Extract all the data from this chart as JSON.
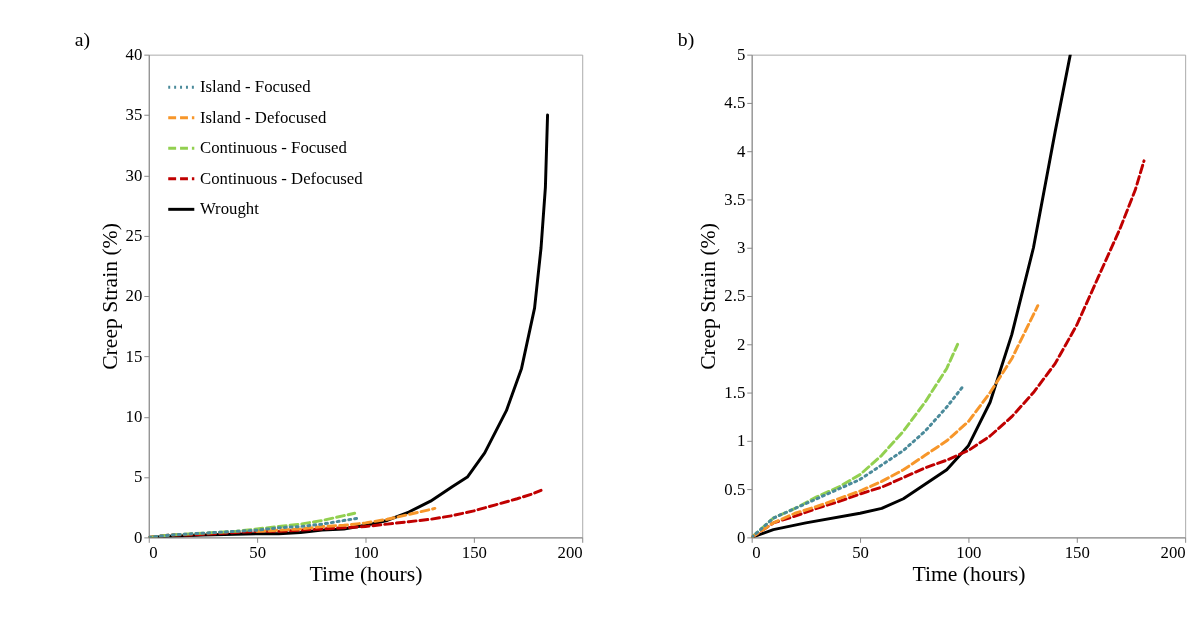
{
  "chart_data": [
    {
      "type": "line",
      "xlabel": "Time (hours)",
      "ylabel": "Creep Strain (%)",
      "annotations": [
        "a)"
      ],
      "xlim": [
        0,
        200
      ],
      "xticks": [
        0,
        50,
        100,
        150,
        200
      ],
      "ylim": [
        0,
        40
      ],
      "yticks": [
        0,
        5,
        10,
        15,
        20,
        25,
        30,
        35,
        40
      ],
      "grid": false,
      "legend": "top left",
      "marker": "none",
      "series": [
        {
          "name": "Island - Focused",
          "color": "#4a8a9a",
          "line_style": "dotted",
          "x": [
            0,
            10,
            20,
            30,
            40,
            50,
            60,
            70,
            80,
            90,
            97
          ],
          "values": [
            0,
            0.2,
            0.3,
            0.4,
            0.5,
            0.6,
            0.8,
            0.9,
            1.1,
            1.4,
            1.6
          ]
        },
        {
          "name": "Island - Defocused",
          "color": "#f7962a",
          "line_style": "dashed",
          "x": [
            50,
            60,
            70,
            80,
            90,
            100,
            110,
            120,
            132
          ],
          "values": [
            0.5,
            0.6,
            0.7,
            0.9,
            1.0,
            1.2,
            1.5,
            1.9,
            2.4
          ]
        },
        {
          "name": "Continuous - Focused",
          "color": "#92d050",
          "line_style": "dashed",
          "x": [
            0,
            10,
            20,
            30,
            40,
            50,
            60,
            70,
            80,
            90,
            95
          ],
          "values": [
            0,
            0.2,
            0.3,
            0.4,
            0.5,
            0.7,
            0.9,
            1.1,
            1.4,
            1.8,
            2.0
          ]
        },
        {
          "name": "Continuous - Defocused",
          "color": "#c00000",
          "line_style": "dashed",
          "x": [
            0,
            10,
            20,
            30,
            40,
            50,
            60,
            70,
            80,
            90,
            100,
            110,
            120,
            130,
            140,
            150,
            160,
            170,
            177,
            181
          ],
          "values": [
            0,
            0.2,
            0.2,
            0.3,
            0.4,
            0.5,
            0.5,
            0.6,
            0.7,
            0.8,
            0.9,
            1.1,
            1.3,
            1.5,
            1.8,
            2.2,
            2.7,
            3.2,
            3.6,
            3.9
          ]
        },
        {
          "name": "Wrought",
          "color": "#000000",
          "line_style": "solid",
          "x": [
            0,
            10,
            25,
            50,
            60,
            70,
            80,
            90,
            100,
            110,
            120,
            130,
            140,
            147,
            155,
            165,
            172,
            178,
            181,
            183,
            184
          ],
          "values": [
            0,
            0.1,
            0.2,
            0.3,
            0.3,
            0.4,
            0.6,
            0.7,
            1.0,
            1.4,
            2.1,
            3.0,
            4.2,
            5.0,
            7,
            10.5,
            14,
            19,
            24,
            29,
            35
          ]
        }
      ]
    },
    {
      "type": "line",
      "xlabel": "Time (hours)",
      "ylabel": "Creep Strain (%)",
      "annotations": [
        "b)"
      ],
      "xlim": [
        0,
        200
      ],
      "xticks": [
        0,
        50,
        100,
        150,
        200
      ],
      "ylim": [
        0,
        5
      ],
      "yticks": [
        0,
        0.5,
        1,
        1.5,
        2,
        2.5,
        3,
        3.5,
        4,
        4.5,
        5
      ],
      "grid": false,
      "legend": "top left",
      "marker": "none",
      "series": [
        {
          "name": "Island - Focused",
          "color": "#4a8a9a",
          "line_style": "dotted",
          "x": [
            0,
            10,
            20,
            30,
            40,
            50,
            60,
            70,
            80,
            90,
            97
          ],
          "values": [
            0,
            0.2,
            0.3,
            0.4,
            0.5,
            0.6,
            0.75,
            0.9,
            1.1,
            1.35,
            1.55
          ]
        },
        {
          "name": "Island - Defocused",
          "color": "#f7962a",
          "line_style": "dashed",
          "x": [
            0,
            10,
            20,
            30,
            40,
            50,
            60,
            70,
            80,
            90,
            100,
            110,
            120,
            132
          ],
          "values": [
            0,
            0.15,
            0.25,
            0.32,
            0.4,
            0.48,
            0.58,
            0.7,
            0.85,
            1.0,
            1.2,
            1.5,
            1.85,
            2.4
          ]
        },
        {
          "name": "Continuous - Focused",
          "color": "#92d050",
          "line_style": "dashed",
          "x": [
            0,
            10,
            20,
            30,
            40,
            50,
            60,
            70,
            80,
            90,
            95
          ],
          "values": [
            0,
            0.2,
            0.3,
            0.42,
            0.52,
            0.65,
            0.85,
            1.1,
            1.4,
            1.75,
            2.0
          ]
        },
        {
          "name": "Continuous - Defocused",
          "color": "#c00000",
          "line_style": "dashed",
          "x": [
            0,
            10,
            20,
            30,
            40,
            50,
            60,
            70,
            80,
            90,
            100,
            110,
            120,
            130,
            140,
            150,
            160,
            170,
            177,
            181
          ],
          "values": [
            0,
            0.15,
            0.22,
            0.3,
            0.37,
            0.45,
            0.52,
            0.62,
            0.72,
            0.8,
            0.9,
            1.05,
            1.25,
            1.5,
            1.8,
            2.2,
            2.7,
            3.2,
            3.6,
            3.9
          ]
        },
        {
          "name": "Wrought",
          "color": "#000000",
          "line_style": "solid",
          "x": [
            0,
            10,
            25,
            50,
            60,
            70,
            80,
            90,
            100,
            110,
            120,
            130,
            140,
            147
          ],
          "values": [
            0,
            0.08,
            0.15,
            0.25,
            0.3,
            0.4,
            0.55,
            0.7,
            0.95,
            1.4,
            2.1,
            3.0,
            4.2,
            5.0
          ]
        }
      ]
    }
  ]
}
